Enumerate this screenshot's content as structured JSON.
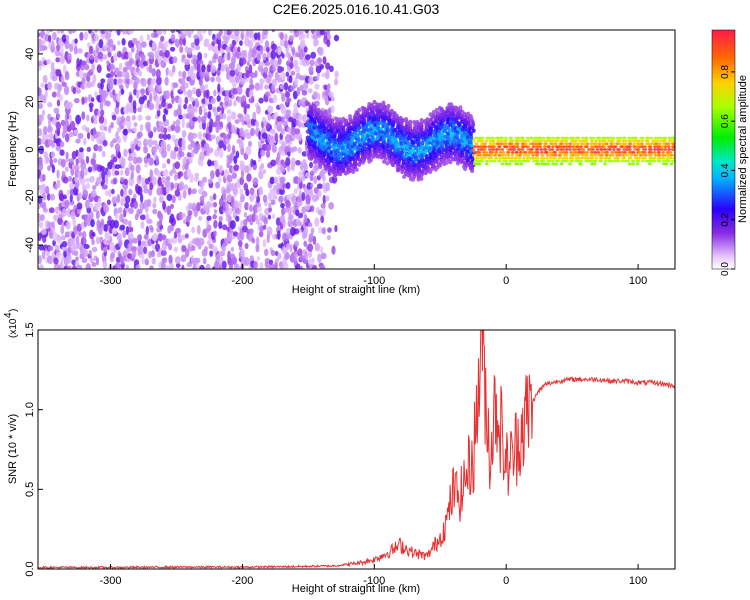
{
  "title": "C2E6.2025.016.10.41.G03",
  "chart_data": [
    {
      "type": "heatmap",
      "xlabel": "Height of straight line (km)",
      "ylabel": "Frequency (Hz)",
      "xlim": [
        -355,
        128
      ],
      "ylim": [
        -50,
        50
      ],
      "xticks": [
        -300,
        -200,
        -100,
        0,
        100
      ],
      "yticks": [
        -40,
        -20,
        0,
        20,
        40
      ],
      "colorbar": {
        "label": "Normalized spectral amplitude",
        "range": [
          0.0,
          0.97
        ],
        "ticks": [
          0.0,
          0.2,
          0.4,
          0.6,
          0.8
        ]
      },
      "grid": false,
      "regions": [
        {
          "x_range": [
            -355,
            -130
          ],
          "freq_range": [
            -50,
            50
          ],
          "amplitude": [
            0.05,
            0.2
          ],
          "note": "scattered noise"
        },
        {
          "x_range": [
            -150,
            -25
          ],
          "freq_center": 5,
          "freq_width": 12,
          "amplitude": [
            0.1,
            0.4
          ]
        },
        {
          "x_range": [
            -25,
            128
          ],
          "freq_center": 0,
          "freq_width": 6,
          "amplitude": [
            0.6,
            0.97
          ]
        }
      ]
    },
    {
      "type": "line",
      "xlabel": "Height of straight line (km)",
      "ylabel": "SNR (10 * v/v)",
      "y_multiplier": "(x10",
      "y_multiplier_exp": "4",
      "y_multiplier_close": ")",
      "xlim": [
        -355,
        128
      ],
      "ylim": [
        0,
        1.5
      ],
      "xticks": [
        -300,
        -200,
        -100,
        0,
        100
      ],
      "yticks": [
        "0.0",
        "0.5",
        "1.0",
        "1.5"
      ],
      "grid": false,
      "color": "#e83030",
      "x": [
        -355,
        -300,
        -250,
        -200,
        -160,
        -130,
        -110,
        -100,
        -90,
        -80,
        -70,
        -60,
        -50,
        -45,
        -40,
        -35,
        -30,
        -25,
        -22,
        -20,
        -18,
        -15,
        -12,
        -10,
        -8,
        -5,
        -2,
        0,
        5,
        10,
        15,
        20,
        25,
        30,
        40,
        50,
        60,
        70,
        80,
        90,
        100,
        110,
        120,
        128
      ],
      "y": [
        0.01,
        0.01,
        0.012,
        0.012,
        0.015,
        0.02,
        0.04,
        0.06,
        0.1,
        0.15,
        0.1,
        0.08,
        0.2,
        0.3,
        0.5,
        0.45,
        0.6,
        0.7,
        1.0,
        1.3,
        1.5,
        1.0,
        0.7,
        0.9,
        1.05,
        0.95,
        0.75,
        0.65,
        0.7,
        0.85,
        0.95,
        1.05,
        1.12,
        1.16,
        1.18,
        1.19,
        1.19,
        1.19,
        1.18,
        1.18,
        1.17,
        1.17,
        1.16,
        1.15
      ]
    }
  ]
}
